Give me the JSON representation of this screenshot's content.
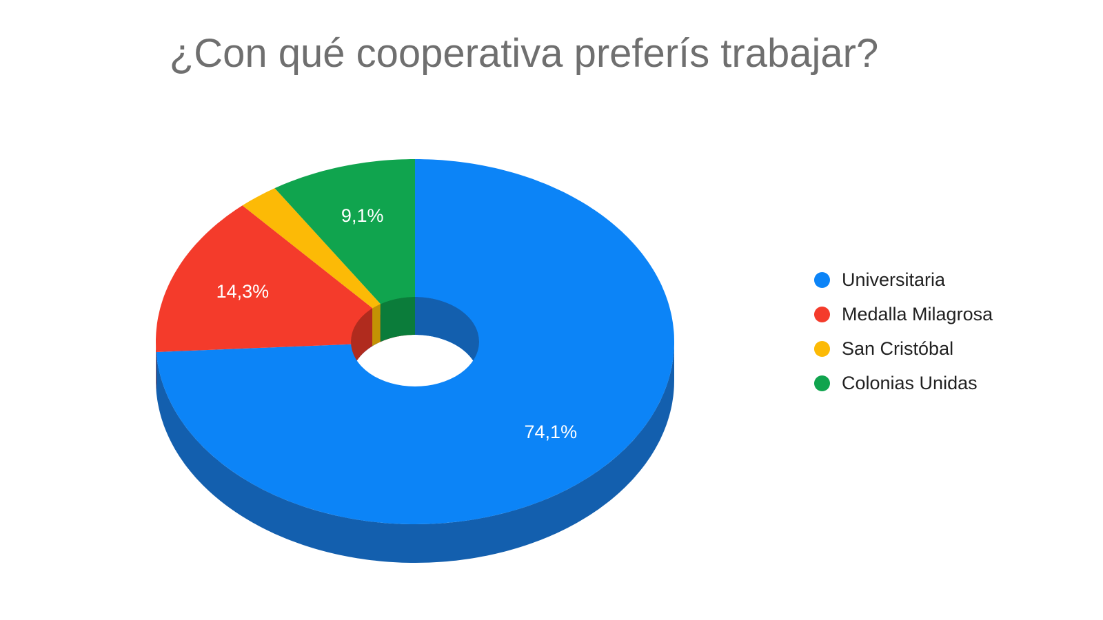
{
  "title": "¿Con qué cooperativa preferís trabajar?",
  "background_color": "#ffffff",
  "title_color": "#6f6f6f",
  "legend_text_color": "#212121",
  "slice_label_color": "#ffffff",
  "chart_data": {
    "type": "pie",
    "style": "3d-donut",
    "title": "¿Con qué cooperativa preferís trabajar?",
    "categories": [
      "Universitaria",
      "Medalla Milagrosa",
      "San Cristóbal",
      "Colonias Unidas"
    ],
    "values": [
      74.1,
      14.3,
      2.5,
      9.1
    ],
    "slice_labels": [
      "74,1%",
      "14,3%",
      null,
      "9,1%"
    ],
    "colors": [
      "#0c84f7",
      "#f43b2b",
      "#fcba06",
      "#10a44e"
    ],
    "dark_colors": [
      "#135fae",
      "#b02b1e",
      "#c39204",
      "#0b7c3a"
    ],
    "start_angle_deg": 0,
    "direction": "clockwise",
    "legend_position": "right",
    "grid": false
  },
  "legend": {
    "items": [
      {
        "label": "Universitaria"
      },
      {
        "label": "Medalla Milagrosa"
      },
      {
        "label": "San Cristóbal"
      },
      {
        "label": "Colonias Unidas"
      }
    ]
  }
}
